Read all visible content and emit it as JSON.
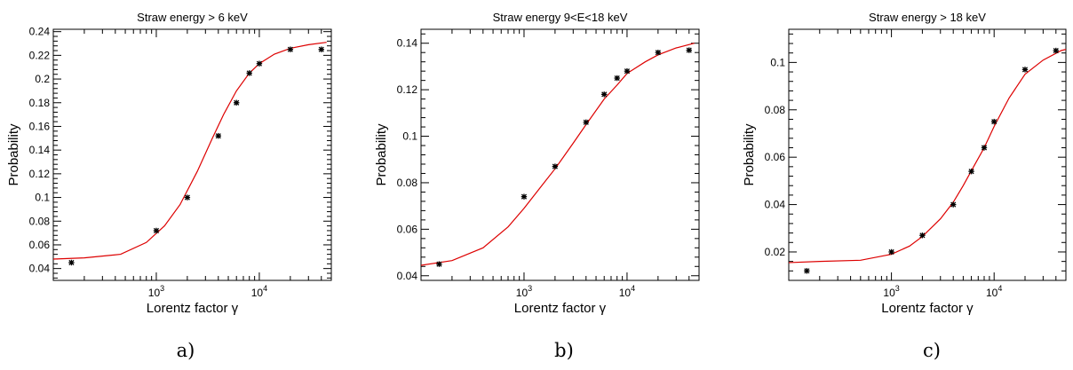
{
  "chart_data": [
    {
      "type": "scatter",
      "panel_label": "a)",
      "title": "Straw energy > 6 keV",
      "xlabel": "Lorentz factor γ",
      "ylabel": "Probability",
      "xscale": "log",
      "xlim": [
        100,
        50000
      ],
      "ylim": [
        0.03,
        0.242
      ],
      "xticks": [
        1000,
        10000
      ],
      "xtick_labels": [
        [
          "10",
          "3"
        ],
        [
          "10",
          "4"
        ]
      ],
      "yticks": [
        0.04,
        0.06,
        0.08,
        0.1,
        0.12,
        0.14,
        0.16,
        0.18,
        0.2,
        0.22,
        0.24
      ],
      "ytick_labels": [
        "0.04",
        "0.06",
        "0.08",
        "0.1",
        "0.12",
        "0.14",
        "0.16",
        "0.18",
        "0.2",
        "0.22",
        "0.24"
      ],
      "grid": false,
      "series": [
        {
          "kind": "markers",
          "color": "#000000",
          "x": [
            150,
            1000,
            2000,
            4000,
            6000,
            8000,
            10000,
            20000,
            40000
          ],
          "y": [
            0.045,
            0.072,
            0.1,
            0.152,
            0.18,
            0.205,
            0.213,
            0.225,
            0.225
          ]
        },
        {
          "kind": "fit",
          "color": "#dd0000",
          "x": [
            100,
            200,
            450,
            800,
            1200,
            1700,
            2500,
            3500,
            4500,
            6000,
            8000,
            10000,
            14000,
            20000,
            30000,
            45000
          ],
          "y": [
            0.048,
            0.049,
            0.052,
            0.062,
            0.076,
            0.094,
            0.122,
            0.15,
            0.17,
            0.19,
            0.205,
            0.213,
            0.221,
            0.226,
            0.229,
            0.231
          ]
        }
      ]
    },
    {
      "type": "scatter",
      "panel_label": "b)",
      "title": "Straw energy 9<E<18 keV",
      "xlabel": "Lorentz factor γ",
      "ylabel": "Probability",
      "xscale": "log",
      "xlim": [
        100,
        50000
      ],
      "ylim": [
        0.038,
        0.146
      ],
      "xticks": [
        1000,
        10000
      ],
      "xtick_labels": [
        [
          "10",
          "3"
        ],
        [
          "10",
          "4"
        ]
      ],
      "yticks": [
        0.04,
        0.06,
        0.08,
        0.1,
        0.12,
        0.14
      ],
      "ytick_labels": [
        "0.04",
        "0.06",
        "0.08",
        "0.1",
        "0.12",
        "0.14"
      ],
      "grid": false,
      "series": [
        {
          "kind": "markers",
          "color": "#000000",
          "x": [
            150,
            1000,
            2000,
            4000,
            6000,
            8000,
            10000,
            20000,
            40000
          ],
          "y": [
            0.045,
            0.074,
            0.087,
            0.106,
            0.118,
            0.125,
            0.128,
            0.136,
            0.137
          ]
        },
        {
          "kind": "fit",
          "color": "#dd0000",
          "x": [
            100,
            200,
            400,
            700,
            1000,
            1500,
            2000,
            3000,
            4000,
            6000,
            8000,
            10000,
            15000,
            20000,
            30000,
            45000
          ],
          "y": [
            0.0445,
            0.0465,
            0.052,
            0.061,
            0.069,
            0.079,
            0.086,
            0.097,
            0.105,
            0.116,
            0.122,
            0.127,
            0.132,
            0.135,
            0.138,
            0.14
          ]
        }
      ]
    },
    {
      "type": "scatter",
      "panel_label": "c)",
      "title": "Straw energy > 18 keV",
      "xlabel": "Lorentz factor γ",
      "ylabel": "Probability",
      "xscale": "log",
      "xlim": [
        100,
        50000
      ],
      "ylim": [
        0.008,
        0.114
      ],
      "xticks": [
        1000,
        10000
      ],
      "xtick_labels": [
        [
          "10",
          "3"
        ],
        [
          "10",
          "4"
        ]
      ],
      "yticks": [
        0.02,
        0.04,
        0.06,
        0.08,
        0.1
      ],
      "ytick_labels": [
        "0.02",
        "0.04",
        "0.06",
        "0.08",
        "0.1"
      ],
      "grid": false,
      "series": [
        {
          "kind": "markers",
          "color": "#000000",
          "x": [
            150,
            1000,
            2000,
            4000,
            6000,
            8000,
            10000,
            20000,
            40000
          ],
          "y": [
            0.012,
            0.02,
            0.027,
            0.04,
            0.054,
            0.064,
            0.075,
            0.097,
            0.105
          ]
        },
        {
          "kind": "fit",
          "color": "#dd0000",
          "x": [
            100,
            200,
            500,
            1000,
            1500,
            2000,
            3000,
            4000,
            5000,
            6500,
            8000,
            10000,
            14000,
            20000,
            30000,
            45000,
            55000
          ],
          "y": [
            0.0155,
            0.016,
            0.0165,
            0.019,
            0.0225,
            0.0265,
            0.034,
            0.041,
            0.048,
            0.057,
            0.064,
            0.073,
            0.085,
            0.095,
            0.101,
            0.105,
            0.106
          ]
        }
      ]
    }
  ]
}
